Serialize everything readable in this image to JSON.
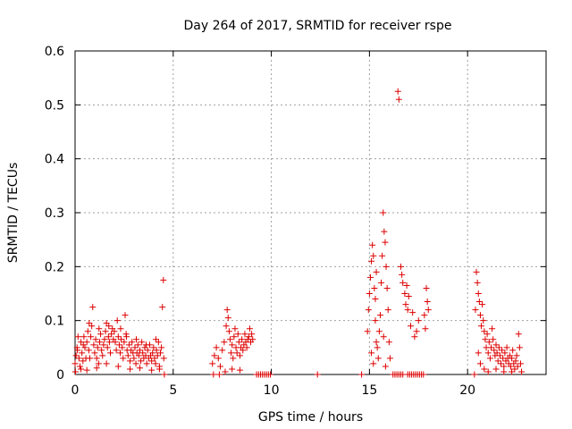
{
  "chart_data": {
    "type": "scatter",
    "title": "Day 264 of 2017, SRMTID for receiver rspe",
    "xlabel": "GPS time / hours",
    "ylabel": "SRMTID / TECUs",
    "xlim": [
      0,
      24
    ],
    "ylim": [
      0,
      0.6
    ],
    "xticks": [
      0,
      5,
      10,
      15,
      20
    ],
    "yticks": [
      0,
      0.1,
      0.2,
      0.3,
      0.4,
      0.5,
      0.6
    ],
    "xtick_labels": [
      "0",
      "5",
      "10",
      "15",
      "20"
    ],
    "ytick_labels": [
      "0",
      "0.1",
      "0.2",
      "0.3",
      "0.4",
      "0.5",
      "0.6"
    ],
    "grid": true,
    "marker": "+",
    "series": [
      {
        "name": "SRMTID",
        "color": "#dd0000",
        "points": [
          [
            0.0,
            0.02
          ],
          [
            0.05,
            0.035
          ],
          [
            0.1,
            0.05
          ],
          [
            0.15,
            0.07
          ],
          [
            0.2,
            0.03
          ],
          [
            0.25,
            0.015
          ],
          [
            0.3,
            0.06
          ],
          [
            0.35,
            0.04
          ],
          [
            0.4,
            0.025
          ],
          [
            0.45,
            0.07
          ],
          [
            0.5,
            0.05
          ],
          [
            0.55,
            0.03
          ],
          [
            0.6,
            0.06
          ],
          [
            0.65,
            0.08
          ],
          [
            0.7,
            0.045
          ],
          [
            0.75,
            0.03
          ],
          [
            0.8,
            0.07
          ],
          [
            0.85,
            0.09
          ],
          [
            0.9,
            0.125
          ],
          [
            0.95,
            0.055
          ],
          [
            1.0,
            0.04
          ],
          [
            1.05,
            0.065
          ],
          [
            1.1,
            0.03
          ],
          [
            1.15,
            0.05
          ],
          [
            1.2,
            0.02
          ],
          [
            1.25,
            0.06
          ],
          [
            1.3,
            0.075
          ],
          [
            1.35,
            0.045
          ],
          [
            1.4,
            0.035
          ],
          [
            1.45,
            0.055
          ],
          [
            1.5,
            0.065
          ],
          [
            1.55,
            0.08
          ],
          [
            1.6,
            0.095
          ],
          [
            1.65,
            0.05
          ],
          [
            1.7,
            0.07
          ],
          [
            1.75,
            0.06
          ],
          [
            1.8,
            0.04
          ],
          [
            1.85,
            0.075
          ],
          [
            1.9,
            0.085
          ],
          [
            1.95,
            0.065
          ],
          [
            2.0,
            0.08
          ],
          [
            2.05,
            0.06
          ],
          [
            2.1,
            0.045
          ],
          [
            2.15,
            0.1
          ],
          [
            2.2,
            0.07
          ],
          [
            2.25,
            0.055
          ],
          [
            2.3,
            0.04
          ],
          [
            2.35,
            0.065
          ],
          [
            2.4,
            0.05
          ],
          [
            2.45,
            0.03
          ],
          [
            2.5,
            0.06
          ],
          [
            2.55,
            0.11
          ],
          [
            2.6,
            0.075
          ],
          [
            2.65,
            0.045
          ],
          [
            2.7,
            0.035
          ],
          [
            2.75,
            0.055
          ],
          [
            2.8,
            0.025
          ],
          [
            2.85,
            0.045
          ],
          [
            2.9,
            0.06
          ],
          [
            2.95,
            0.04
          ],
          [
            3.0,
            0.03
          ],
          [
            3.05,
            0.05
          ],
          [
            3.1,
            0.02
          ],
          [
            3.15,
            0.04
          ],
          [
            3.2,
            0.055
          ],
          [
            3.25,
            0.035
          ],
          [
            3.3,
            0.045
          ],
          [
            3.35,
            0.025
          ],
          [
            3.4,
            0.06
          ],
          [
            3.45,
            0.04
          ],
          [
            3.5,
            0.03
          ],
          [
            3.55,
            0.05
          ],
          [
            3.6,
            0.035
          ],
          [
            3.65,
            0.02
          ],
          [
            3.7,
            0.045
          ],
          [
            3.75,
            0.03
          ],
          [
            3.8,
            0.055
          ],
          [
            3.85,
            0.035
          ],
          [
            3.9,
            0.025
          ],
          [
            3.95,
            0.04
          ],
          [
            4.0,
            0.05
          ],
          [
            4.05,
            0.03
          ],
          [
            4.1,
            0.02
          ],
          [
            4.15,
            0.045
          ],
          [
            4.2,
            0.035
          ],
          [
            4.25,
            0.06
          ],
          [
            4.3,
            0.015
          ],
          [
            4.35,
            0.04
          ],
          [
            4.4,
            0.05
          ],
          [
            4.45,
            0.125
          ],
          [
            4.5,
            0.175
          ],
          [
            4.52,
            0.03
          ],
          [
            4.55,
            0.0
          ],
          [
            0.02,
            0.005
          ],
          [
            0.3,
            0.01
          ],
          [
            0.6,
            0.008
          ],
          [
            1.1,
            0.012
          ],
          [
            1.6,
            0.02
          ],
          [
            2.2,
            0.015
          ],
          [
            2.8,
            0.01
          ],
          [
            3.3,
            0.012
          ],
          [
            3.9,
            0.008
          ],
          [
            4.3,
            0.01
          ],
          [
            0.12,
            0.045
          ],
          [
            0.42,
            0.055
          ],
          [
            0.72,
            0.095
          ],
          [
            1.22,
            0.085
          ],
          [
            1.72,
            0.09
          ],
          [
            2.32,
            0.085
          ],
          [
            2.62,
            0.07
          ],
          [
            3.12,
            0.065
          ],
          [
            3.62,
            0.055
          ],
          [
            4.12,
            0.065
          ],
          [
            7.0,
            0.02
          ],
          [
            7.1,
            0.035
          ],
          [
            7.2,
            0.05
          ],
          [
            7.3,
            0.03
          ],
          [
            7.4,
            0.015
          ],
          [
            7.5,
            0.045
          ],
          [
            7.6,
            0.06
          ],
          [
            7.7,
            0.09
          ],
          [
            7.75,
            0.12
          ],
          [
            7.8,
            0.105
          ],
          [
            7.85,
            0.08
          ],
          [
            7.9,
            0.065
          ],
          [
            7.95,
            0.04
          ],
          [
            8.0,
            0.055
          ],
          [
            8.05,
            0.03
          ],
          [
            8.1,
            0.07
          ],
          [
            8.15,
            0.085
          ],
          [
            8.2,
            0.05
          ],
          [
            8.25,
            0.04
          ],
          [
            8.3,
            0.075
          ],
          [
            8.35,
            0.06
          ],
          [
            8.4,
            0.035
          ],
          [
            8.45,
            0.05
          ],
          [
            8.5,
            0.065
          ],
          [
            8.55,
            0.045
          ],
          [
            8.6,
            0.055
          ],
          [
            8.65,
            0.075
          ],
          [
            8.7,
            0.06
          ],
          [
            8.75,
            0.05
          ],
          [
            8.8,
            0.065
          ],
          [
            8.85,
            0.07
          ],
          [
            8.9,
            0.085
          ],
          [
            8.95,
            0.06
          ],
          [
            9.0,
            0.075
          ],
          [
            9.05,
            0.065
          ],
          [
            7.05,
            0.0
          ],
          [
            7.35,
            0.0
          ],
          [
            7.65,
            0.005
          ],
          [
            8.0,
            0.01
          ],
          [
            8.4,
            0.008
          ],
          [
            9.25,
            0.0
          ],
          [
            9.35,
            0.0
          ],
          [
            9.45,
            0.0
          ],
          [
            9.55,
            0.0
          ],
          [
            9.65,
            0.0
          ],
          [
            9.75,
            0.0
          ],
          [
            9.85,
            0.0
          ],
          [
            9.95,
            0.0
          ],
          [
            12.35,
            0.0
          ],
          [
            14.6,
            0.0
          ],
          [
            14.9,
            0.08
          ],
          [
            14.95,
            0.12
          ],
          [
            15.0,
            0.15
          ],
          [
            15.05,
            0.18
          ],
          [
            15.1,
            0.21
          ],
          [
            15.15,
            0.24
          ],
          [
            15.2,
            0.22
          ],
          [
            15.25,
            0.16
          ],
          [
            15.3,
            0.1
          ],
          [
            15.35,
            0.06
          ],
          [
            15.1,
            0.04
          ],
          [
            15.2,
            0.02
          ],
          [
            15.3,
            0.14
          ],
          [
            15.35,
            0.19
          ],
          [
            15.4,
            0.05
          ],
          [
            15.45,
            0.03
          ],
          [
            15.5,
            0.08
          ],
          [
            15.55,
            0.11
          ],
          [
            15.6,
            0.17
          ],
          [
            15.65,
            0.22
          ],
          [
            15.7,
            0.3
          ],
          [
            15.75,
            0.265
          ],
          [
            15.8,
            0.245
          ],
          [
            15.85,
            0.2
          ],
          [
            15.9,
            0.16
          ],
          [
            15.95,
            0.12
          ],
          [
            16.0,
            0.06
          ],
          [
            16.05,
            0.03
          ],
          [
            15.72,
            0.07
          ],
          [
            15.82,
            0.015
          ],
          [
            16.45,
            0.525
          ],
          [
            16.5,
            0.51
          ],
          [
            16.6,
            0.2
          ],
          [
            16.65,
            0.185
          ],
          [
            16.7,
            0.17
          ],
          [
            16.8,
            0.15
          ],
          [
            16.85,
            0.13
          ],
          [
            16.9,
            0.165
          ],
          [
            16.95,
            0.12
          ],
          [
            17.0,
            0.145
          ],
          [
            17.1,
            0.09
          ],
          [
            17.2,
            0.115
          ],
          [
            17.3,
            0.07
          ],
          [
            17.4,
            0.08
          ],
          [
            17.5,
            0.1
          ],
          [
            17.9,
            0.16
          ],
          [
            17.95,
            0.135
          ],
          [
            18.0,
            0.12
          ],
          [
            17.85,
            0.085
          ],
          [
            17.8,
            0.11
          ],
          [
            16.2,
            0.0
          ],
          [
            16.3,
            0.0
          ],
          [
            16.4,
            0.0
          ],
          [
            16.5,
            0.0
          ],
          [
            16.6,
            0.0
          ],
          [
            16.7,
            0.0
          ],
          [
            16.95,
            0.0
          ],
          [
            17.05,
            0.0
          ],
          [
            17.15,
            0.0
          ],
          [
            17.25,
            0.0
          ],
          [
            17.35,
            0.0
          ],
          [
            17.45,
            0.0
          ],
          [
            17.55,
            0.0
          ],
          [
            17.65,
            0.0
          ],
          [
            17.75,
            0.0
          ],
          [
            20.4,
            0.12
          ],
          [
            20.45,
            0.19
          ],
          [
            20.5,
            0.17
          ],
          [
            20.55,
            0.15
          ],
          [
            20.6,
            0.135
          ],
          [
            20.65,
            0.11
          ],
          [
            20.7,
            0.09
          ],
          [
            20.75,
            0.13
          ],
          [
            20.8,
            0.1
          ],
          [
            20.85,
            0.08
          ],
          [
            20.9,
            0.065
          ],
          [
            20.95,
            0.05
          ],
          [
            21.0,
            0.075
          ],
          [
            21.05,
            0.04
          ],
          [
            21.1,
            0.06
          ],
          [
            21.15,
            0.03
          ],
          [
            21.2,
            0.05
          ],
          [
            21.25,
            0.085
          ],
          [
            21.3,
            0.065
          ],
          [
            21.35,
            0.045
          ],
          [
            21.4,
            0.035
          ],
          [
            21.45,
            0.055
          ],
          [
            21.5,
            0.04
          ],
          [
            21.55,
            0.025
          ],
          [
            21.6,
            0.05
          ],
          [
            21.65,
            0.035
          ],
          [
            21.7,
            0.02
          ],
          [
            21.75,
            0.045
          ],
          [
            21.8,
            0.03
          ],
          [
            21.85,
            0.015
          ],
          [
            21.9,
            0.04
          ],
          [
            21.95,
            0.025
          ],
          [
            22.0,
            0.05
          ],
          [
            22.05,
            0.03
          ],
          [
            22.1,
            0.02
          ],
          [
            22.15,
            0.035
          ],
          [
            22.2,
            0.015
          ],
          [
            22.25,
            0.03
          ],
          [
            22.3,
            0.045
          ],
          [
            22.35,
            0.02
          ],
          [
            22.4,
            0.01
          ],
          [
            22.45,
            0.025
          ],
          [
            22.5,
            0.035
          ],
          [
            22.55,
            0.015
          ],
          [
            22.6,
            0.075
          ],
          [
            22.65,
            0.05
          ],
          [
            22.7,
            0.02
          ],
          [
            22.75,
            0.005
          ],
          [
            20.35,
            0.0
          ],
          [
            20.55,
            0.04
          ],
          [
            20.65,
            0.02
          ],
          [
            20.85,
            0.01
          ],
          [
            21.05,
            0.005
          ],
          [
            21.45,
            0.01
          ],
          [
            21.85,
            0.005
          ],
          [
            22.25,
            0.005
          ]
        ]
      }
    ]
  }
}
